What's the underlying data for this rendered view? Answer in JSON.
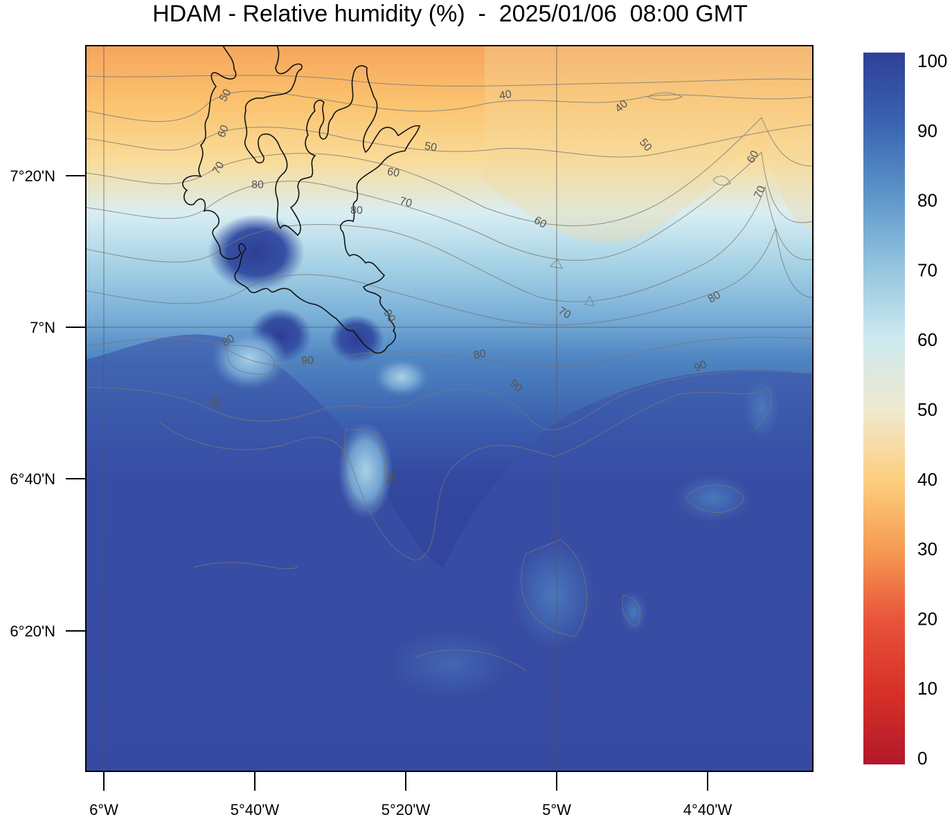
{
  "title": "HDAM - Relative humidity (%)  -  2025/01/06  08:00 GMT",
  "colors": {
    "c0": "#b2182b",
    "c20": "#e8523a",
    "c30": "#f59a52",
    "c40": "#fdcf7e",
    "c50": "#efe9d0",
    "c60": "#cce9f0",
    "c70": "#93c4de",
    "c80": "#5c95c9",
    "c90": "#3a64b0",
    "c100": "#2f3f98"
  },
  "axes": {
    "x_ticks": [
      "6°W",
      "5°40'W",
      "5°20'W",
      "5°W",
      "4°40'W"
    ],
    "y_ticks": [
      "7°20'N",
      "7°N",
      "6°40'N",
      "6°20'N"
    ]
  },
  "colorbar": {
    "ticks": [
      "100",
      "90",
      "80",
      "70",
      "60",
      "50",
      "40",
      "30",
      "20",
      "10",
      "0"
    ]
  },
  "contour_labels": [
    "50",
    "60",
    "70",
    "80",
    "80",
    "90",
    "80",
    "90",
    "90",
    "40",
    "40",
    "50",
    "50",
    "60",
    "70",
    "60",
    "60",
    "70",
    "70",
    "80",
    "80",
    "90",
    "90",
    "90"
  ]
}
